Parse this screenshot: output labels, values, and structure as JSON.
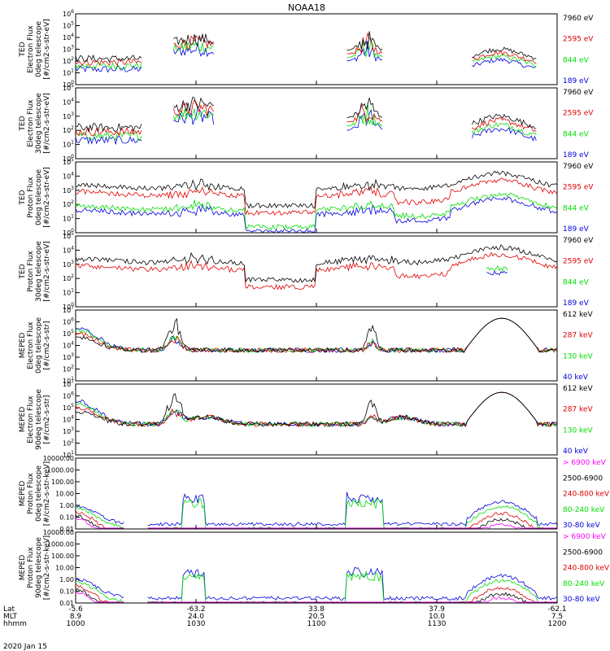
{
  "title": "NOAA18",
  "date_label": "2020 Jan 15",
  "x_axis": {
    "row_labels": [
      "Lat",
      "MLT",
      "hhmm"
    ],
    "ticks": [
      {
        "time": "1000",
        "lat": "-5.6",
        "mlt": "8.9"
      },
      {
        "time": "1030",
        "lat": "-63.2",
        "mlt": "24.0"
      },
      {
        "time": "1100",
        "lat": "33.8",
        "mlt": "20.5"
      },
      {
        "time": "1130",
        "lat": "37.9",
        "mlt": "10.0"
      },
      {
        "time": "1200",
        "lat": "-62.1",
        "mlt": "7.5"
      }
    ]
  },
  "colors": {
    "black": "#000000",
    "red": "#e00000",
    "green": "#00dd00",
    "blue": "#0000e0",
    "magenta": "#ff00ff"
  },
  "chart_data": [
    {
      "type": "line",
      "ylabel": [
        "TED",
        "Electron Flux",
        "0deg telescope",
        "[#/cm2-s-str-eV]"
      ],
      "ylim": [
        1,
        1000000
      ],
      "log": true,
      "yticks": [
        "10^0",
        "10^1",
        "10^2",
        "10^3",
        "10^4",
        "10^5",
        "10^6"
      ],
      "legend": [
        {
          "label": "7960 eV",
          "color": "black"
        },
        {
          "label": "2595 eV",
          "color": "red"
        },
        {
          "label": "844 eV",
          "color": "green"
        },
        {
          "label": "189 eV",
          "color": "blue"
        }
      ]
    },
    {
      "type": "line",
      "ylabel": [
        "TED",
        "Electron Flux",
        "30deg telescope",
        "[#/cm2-s-str-eV]"
      ],
      "ylim": [
        1,
        100000
      ],
      "log": true,
      "yticks": [
        "10^0",
        "10^1",
        "10^2",
        "10^3",
        "10^4",
        "10^5"
      ],
      "legend": [
        {
          "label": "7960 eV",
          "color": "black"
        },
        {
          "label": "2595 eV",
          "color": "red"
        },
        {
          "label": "844 eV",
          "color": "green"
        },
        {
          "label": "189 eV",
          "color": "blue"
        }
      ]
    },
    {
      "type": "line",
      "ylabel": [
        "TED",
        "Proton Flux",
        "0deg telescope",
        "[#/cm2-s-str-eV]"
      ],
      "ylim": [
        1,
        100000
      ],
      "log": true,
      "yticks": [
        "10^0",
        "10^1",
        "10^2",
        "10^3",
        "10^4",
        "10^5"
      ],
      "legend": [
        {
          "label": "7960 eV",
          "color": "black"
        },
        {
          "label": "2595 eV",
          "color": "red"
        },
        {
          "label": "844 eV",
          "color": "green"
        },
        {
          "label": "189 eV",
          "color": "blue"
        }
      ]
    },
    {
      "type": "line",
      "ylabel": [
        "TED",
        "Proton Flux",
        "30deg telescope",
        "[#/cm2-s-str-eV]"
      ],
      "ylim": [
        1,
        100000
      ],
      "log": true,
      "yticks": [
        "10^0",
        "10^1",
        "10^2",
        "10^3",
        "10^4",
        "10^5"
      ],
      "legend": [
        {
          "label": "7960 eV",
          "color": "black"
        },
        {
          "label": "2595 eV",
          "color": "red"
        },
        {
          "label": "844 eV",
          "color": "green"
        },
        {
          "label": "189 eV",
          "color": "blue"
        }
      ]
    },
    {
      "type": "line",
      "ylabel": [
        "MEPED",
        "Electron Flux",
        "0deg telescope",
        "[#/cm2-s-str]"
      ],
      "ylim": [
        10,
        10000000
      ],
      "log": true,
      "yticks": [
        "10^1",
        "10^2",
        "10^3",
        "10^4",
        "10^5",
        "10^6",
        "10^7"
      ],
      "legend": [
        {
          "label": "612 keV",
          "color": "black"
        },
        {
          "label": "287 keV",
          "color": "red"
        },
        {
          "label": "130 keV",
          "color": "green"
        },
        {
          "label": "40 keV",
          "color": "blue"
        }
      ]
    },
    {
      "type": "line",
      "ylabel": [
        "MEPED",
        "Electron Flux",
        "90deg telescope",
        "[#/cm2-s-str]"
      ],
      "ylim": [
        10,
        10000000
      ],
      "log": true,
      "yticks": [
        "10^1",
        "10^2",
        "10^3",
        "10^4",
        "10^5",
        "10^6",
        "10^7"
      ],
      "legend": [
        {
          "label": "612 keV",
          "color": "black"
        },
        {
          "label": "287 keV",
          "color": "red"
        },
        {
          "label": "130 keV",
          "color": "green"
        },
        {
          "label": "40 keV",
          "color": "blue"
        }
      ]
    },
    {
      "type": "line",
      "ylabel": [
        "MEPED",
        "Proton Flux",
        "0deg telescope",
        "[#/cm2-s-str-keV]"
      ],
      "ylim": [
        0.01,
        10000
      ],
      "log": true,
      "yticks": [
        "0.01",
        "0.10",
        "1.00",
        "10.00",
        "100.00",
        "1000.00",
        "10000.00"
      ],
      "legend": [
        {
          "label": "> 6900 keV",
          "color": "magenta"
        },
        {
          "label": "2500-6900",
          "color": "black"
        },
        {
          "label": "240-800 keV",
          "color": "red"
        },
        {
          "label": "80-240 keV",
          "color": "green"
        },
        {
          "label": "30-80 keV",
          "color": "blue"
        }
      ]
    },
    {
      "type": "line",
      "ylabel": [
        "MEPED",
        "Proton Flux",
        "90deg telescope",
        "[#/cm2-s-str-keV]"
      ],
      "ylim": [
        0.01,
        10000
      ],
      "log": true,
      "yticks": [
        "0.01",
        "0.10",
        "1.00",
        "10.00",
        "100.00",
        "1000.00",
        "10000.00"
      ],
      "legend": [
        {
          "label": "> 6900 keV",
          "color": "magenta"
        },
        {
          "label": "2500-6900",
          "color": "black"
        },
        {
          "label": "240-800 keV",
          "color": "red"
        },
        {
          "label": "80-240 keV",
          "color": "green"
        },
        {
          "label": "30-80 keV",
          "color": "blue"
        }
      ]
    }
  ]
}
